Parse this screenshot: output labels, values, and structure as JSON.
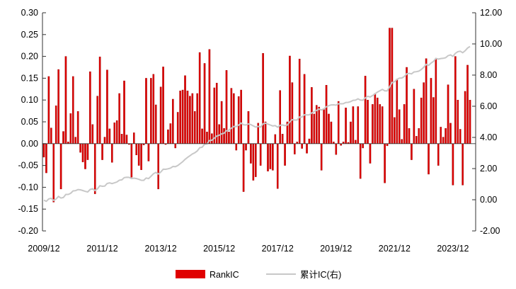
{
  "chart_data": {
    "type": "bar+line",
    "x_tick_labels": [
      "2009/12",
      "2011/12",
      "2013/12",
      "2015/12",
      "2017/12",
      "2019/12",
      "2021/12",
      "2023/12"
    ],
    "left_axis": {
      "ylim": [
        -0.2,
        0.3
      ],
      "ticks": [
        "0.30",
        "0.25",
        "0.20",
        "0.15",
        "0.10",
        "0.05",
        "0.00",
        "-0.05",
        "-0.10",
        "-0.15",
        "-0.20"
      ]
    },
    "right_axis": {
      "ylim": [
        -2,
        12
      ],
      "ticks": [
        "12.00",
        "10.00",
        "8.00",
        "6.00",
        "4.00",
        "2.00",
        "0.00",
        "-2.00"
      ]
    },
    "legend": {
      "position": "bottom",
      "items": [
        "RankIC",
        "累计IC(右)"
      ]
    },
    "series": [
      {
        "name": "RankIC",
        "type": "bar",
        "axis": "left",
        "color": "#e00000",
        "start": "2009/12",
        "frequency": "monthly",
        "values": [
          -0.031,
          -0.067,
          0.154,
          0.036,
          -0.134,
          0.087,
          0.17,
          -0.104,
          0.028,
          0.2,
          0.004,
          0.069,
          0.154,
          0.015,
          0.074,
          -0.02,
          -0.042,
          -0.058,
          -0.037,
          0.165,
          0.044,
          -0.115,
          0.109,
          0.199,
          -0.037,
          0.015,
          0.169,
          0.034,
          -0.043,
          0.048,
          0.053,
          0.115,
          0.022,
          0.144,
          0.02,
          -0.002,
          -0.077,
          0.025,
          -0.026,
          -0.05,
          -0.06,
          -0.003,
          0.15,
          -0.04,
          0.15,
          0.159,
          0.089,
          -0.104,
          0.13,
          0.176,
          -0.002,
          0.032,
          0.046,
          0.102,
          -0.01,
          0.072,
          0.121,
          0.123,
          0.156,
          0.121,
          0.109,
          0.115,
          0.074,
          0.115,
          0.209,
          0.034,
          0.184,
          0.027,
          0.216,
          0.023,
          0.128,
          0.139,
          0.044,
          0.097,
          0.035,
          0.168,
          0.027,
          0.127,
          0.115,
          -0.015,
          0.108,
          0.123,
          -0.11,
          -0.015,
          0.074,
          -0.045,
          -0.084,
          -0.076,
          0.047,
          -0.05,
          0.207,
          0.05,
          -0.063,
          -0.058,
          -0.061,
          0.021,
          -0.103,
          0.122,
          0.022,
          -0.05,
          0.05,
          0.201,
          0.14,
          -0.024,
          0.004,
          0.194,
          -0.011,
          0.159,
          -0.022,
          0.011,
          0.129,
          0.068,
          0.088,
          0.084,
          -0.061,
          0.078,
          0.134,
          0.068,
          0.05,
          0.004,
          -0.025,
          0.097,
          -0.004,
          0.004,
          0.082,
          0.003,
          0.05,
          0.085,
          0.008,
          0.085,
          -0.08,
          -0.01,
          0.155,
          0.1,
          -0.045,
          0.09,
          0.115,
          0.105,
          0.09,
          0.085,
          -0.09,
          -0.005,
          0.265,
          0.265,
          0.06,
          0.148,
          0.078,
          0.01,
          0.09,
          0.175,
          0.035,
          -0.037,
          0.125,
          0.017,
          0.035,
          0.105,
          0.14,
          0.195,
          -0.07,
          0.15,
          0.106,
          0.195,
          -0.05,
          0.038,
          0.015,
          0.035,
          0.135,
          0.047,
          -0.095,
          0.2,
          0.1,
          0.033,
          -0.095,
          0.12,
          0.18,
          0.1
        ]
      },
      {
        "name": "累计IC(右)",
        "type": "line",
        "axis": "right",
        "color": "#c8c8c8",
        "derived_from": "RankIC"
      }
    ]
  }
}
